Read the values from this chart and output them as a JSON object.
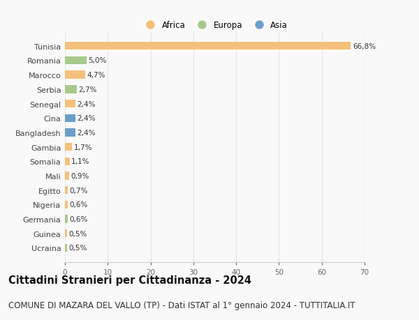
{
  "countries": [
    "Tunisia",
    "Romania",
    "Marocco",
    "Serbia",
    "Senegal",
    "Cina",
    "Bangladesh",
    "Gambia",
    "Somalia",
    "Mali",
    "Egitto",
    "Nigeria",
    "Germania",
    "Guinea",
    "Ucraina"
  ],
  "values": [
    66.8,
    5.0,
    4.7,
    2.7,
    2.4,
    2.4,
    2.4,
    1.7,
    1.1,
    0.9,
    0.7,
    0.6,
    0.6,
    0.5,
    0.5
  ],
  "labels": [
    "66,8%",
    "5,0%",
    "4,7%",
    "2,7%",
    "2,4%",
    "2,4%",
    "2,4%",
    "1,7%",
    "1,1%",
    "0,9%",
    "0,7%",
    "0,6%",
    "0,6%",
    "0,5%",
    "0,5%"
  ],
  "continents": [
    "Africa",
    "Europa",
    "Africa",
    "Europa",
    "Africa",
    "Asia",
    "Asia",
    "Africa",
    "Africa",
    "Africa",
    "Africa",
    "Africa",
    "Europa",
    "Africa",
    "Europa"
  ],
  "colors": {
    "Africa": "#F5C07A",
    "Europa": "#A8C98A",
    "Asia": "#6B9FCA"
  },
  "xlim": [
    0,
    70
  ],
  "xticks": [
    0,
    10,
    20,
    30,
    40,
    50,
    60,
    70
  ],
  "title": "Cittadini Stranieri per Cittadinanza - 2024",
  "subtitle": "COMUNE DI MAZARA DEL VALLO (TP) - Dati ISTAT al 1° gennaio 2024 - TUTTITALIA.IT",
  "background_color": "#f9f9f9",
  "grid_color": "#e8e8e8",
  "bar_height": 0.55,
  "title_fontsize": 10.5,
  "subtitle_fontsize": 8.5,
  "label_fontsize": 7.5,
  "ytick_fontsize": 8,
  "xtick_fontsize": 7.5,
  "legend_fontsize": 8.5
}
